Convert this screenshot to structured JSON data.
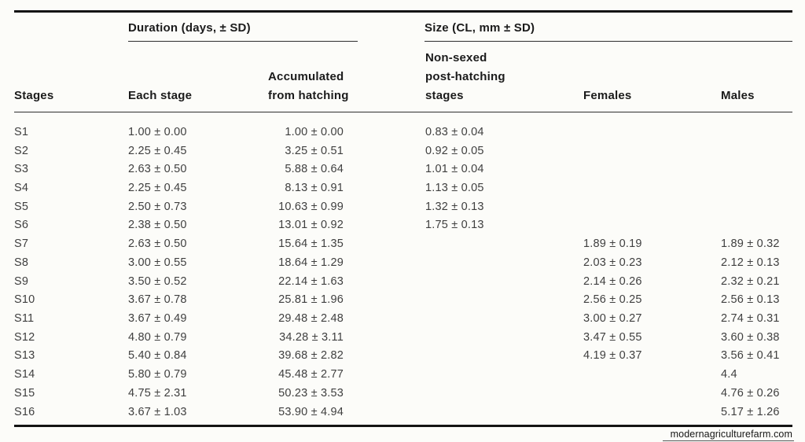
{
  "page": {
    "colors": {
      "ink": "#141414",
      "ink-soft": "#3f3f3f",
      "paper": "#fcfcf9"
    }
  },
  "table": {
    "group_headers": {
      "duration": "Duration (days, ± SD)",
      "size": "Size (CL, mm ± SD)"
    },
    "column_headers": [
      "Stages",
      "Each stage",
      "Accumulated from hatching",
      "Non-sexed post-hatching stages",
      "Females",
      "Males"
    ],
    "rows": [
      {
        "stage": "S1",
        "each_stage": "1.00 ± 0.00",
        "accumulated": "1.00 ± 0.00",
        "non_sexed": "0.83 ± 0.04",
        "females": "",
        "males": ""
      },
      {
        "stage": "S2",
        "each_stage": "2.25 ± 0.45",
        "accumulated": "3.25 ± 0.51",
        "non_sexed": "0.92 ± 0.05",
        "females": "",
        "males": ""
      },
      {
        "stage": "S3",
        "each_stage": "2.63 ± 0.50",
        "accumulated": "5.88 ± 0.64",
        "non_sexed": "1.01 ± 0.04",
        "females": "",
        "males": ""
      },
      {
        "stage": "S4",
        "each_stage": "2.25 ± 0.45",
        "accumulated": "8.13 ± 0.91",
        "non_sexed": "1.13 ± 0.05",
        "females": "",
        "males": ""
      },
      {
        "stage": "S5",
        "each_stage": "2.50 ± 0.73",
        "accumulated": "10.63 ± 0.99",
        "non_sexed": "1.32 ± 0.13",
        "females": "",
        "males": ""
      },
      {
        "stage": "S6",
        "each_stage": "2.38 ± 0.50",
        "accumulated": "13.01 ± 0.92",
        "non_sexed": "1.75 ± 0.13",
        "females": "",
        "males": ""
      },
      {
        "stage": "S7",
        "each_stage": "2.63 ± 0.50",
        "accumulated": "15.64 ± 1.35",
        "non_sexed": "",
        "females": "1.89 ± 0.19",
        "males": "1.89 ± 0.32"
      },
      {
        "stage": "S8",
        "each_stage": "3.00 ± 0.55",
        "accumulated": "18.64 ± 1.29",
        "non_sexed": "",
        "females": "2.03 ± 0.23",
        "males": "2.12 ± 0.13"
      },
      {
        "stage": "S9",
        "each_stage": "3.50 ± 0.52",
        "accumulated": "22.14 ± 1.63",
        "non_sexed": "",
        "females": "2.14 ± 0.26",
        "males": "2.32 ± 0.21"
      },
      {
        "stage": "S10",
        "each_stage": "3.67 ± 0.78",
        "accumulated": "25.81 ± 1.96",
        "non_sexed": "",
        "females": "2.56 ± 0.25",
        "males": "2.56 ± 0.13"
      },
      {
        "stage": "S11",
        "each_stage": "3.67 ± 0.49",
        "accumulated": "29.48 ± 2.48",
        "non_sexed": "",
        "females": "3.00 ± 0.27",
        "males": "2.74 ± 0.31"
      },
      {
        "stage": "S12",
        "each_stage": "4.80 ± 0.79",
        "accumulated": "34.28 ± 3.11",
        "non_sexed": "",
        "females": "3.47 ± 0.55",
        "males": "3.60 ± 0.38"
      },
      {
        "stage": "S13",
        "each_stage": "5.40 ± 0.84",
        "accumulated": "39.68 ± 2.82",
        "non_sexed": "",
        "females": "4.19 ± 0.37",
        "males": "3.56 ± 0.41"
      },
      {
        "stage": "S14",
        "each_stage": "5.80 ± 0.79",
        "accumulated": "45.48 ± 2.77",
        "non_sexed": "",
        "females": "",
        "males": "4.4"
      },
      {
        "stage": "S15",
        "each_stage": "4.75 ± 2.31",
        "accumulated": "50.23 ± 3.53",
        "non_sexed": "",
        "females": "",
        "males": "4.76 ± 0.26"
      },
      {
        "stage": "S16",
        "each_stage": "3.67 ± 1.03",
        "accumulated": "53.90 ± 4.94",
        "non_sexed": "",
        "females": "",
        "males": "5.17 ± 1.26"
      }
    ]
  },
  "watermark": {
    "text": "modernagriculturefarm.com"
  }
}
